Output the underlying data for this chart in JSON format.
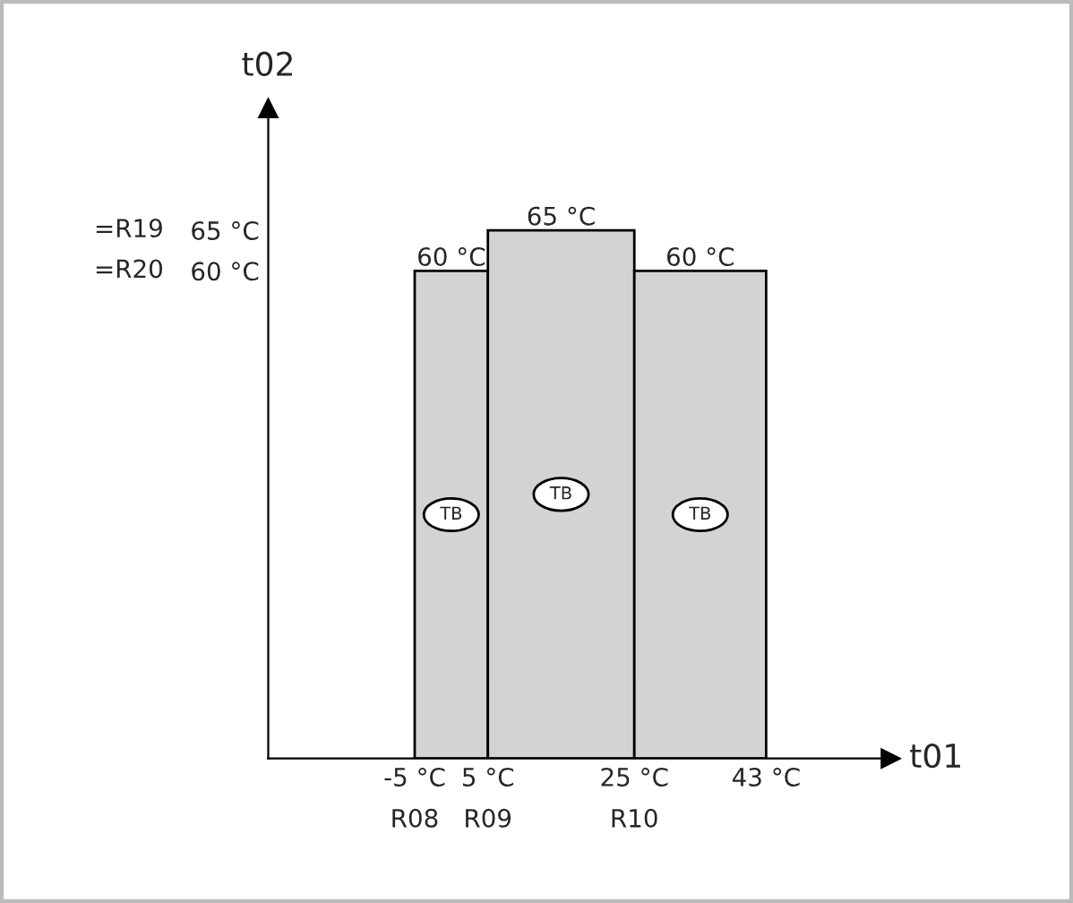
{
  "chart_data": {
    "type": "histogram",
    "bins": [
      -5,
      5,
      25,
      43
    ],
    "values": [
      60,
      65,
      60
    ],
    "color": "#d3d3d3",
    "value_labels": [
      "60 °C",
      "65 °C",
      "60 °C"
    ],
    "annotations": [
      "TB",
      "TB",
      "TB",
      {
        "text": "R08",
        "x": -5,
        "y": 0
      },
      {
        "text": "R09",
        "x": 5,
        "y": 0
      },
      {
        "text": "R10",
        "x": 25,
        "y": 0
      },
      "=R19",
      "=R20"
    ],
    "xlabel": "t01",
    "ylabel": "t02",
    "xlim": [
      -25,
      60
    ],
    "ylim": [
      0,
      80
    ],
    "xticks": [
      {
        "value": -5,
        "label": "-5 °C"
      },
      {
        "value": 5,
        "label": "5 °C"
      },
      {
        "value": 25,
        "label": "25 °C"
      },
      {
        "value": 43,
        "label": "43 °C"
      }
    ],
    "yticks": [
      {
        "value": 65,
        "label": "65 °C"
      },
      {
        "value": 60,
        "label": "60 °C"
      }
    ],
    "grid": false
  }
}
